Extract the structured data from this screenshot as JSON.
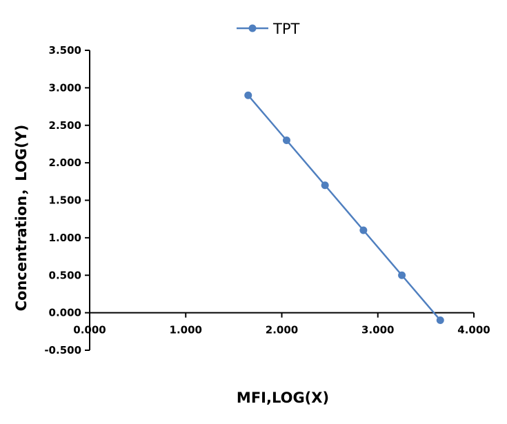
{
  "chart_data": {
    "type": "line",
    "title": "",
    "xlabel": "MFI,LOG(X)",
    "ylabel": "Concentration，LOG(Y)",
    "xlim": [
      0,
      4
    ],
    "ylim": [
      -0.5,
      3.5
    ],
    "x_ticks": [
      0,
      1,
      2,
      3,
      4
    ],
    "x_tick_labels": [
      "0.000",
      "1.000",
      "2.000",
      "3.000",
      "4.000"
    ],
    "y_ticks": [
      -0.5,
      0,
      0.5,
      1,
      1.5,
      2,
      2.5,
      3,
      3.5
    ],
    "y_tick_labels": [
      "-0.500",
      "0.000",
      "0.500",
      "1.000",
      "1.500",
      "2.000",
      "2.500",
      "3.000",
      "3.500"
    ],
    "grid": false,
    "legend_position": "top-center",
    "series": [
      {
        "name": "TPT",
        "color": "#4f7fbf",
        "x": [
          1.65,
          2.05,
          2.45,
          2.85,
          3.25,
          3.65
        ],
        "y": [
          2.9,
          2.3,
          1.7,
          1.1,
          0.5,
          -0.1
        ]
      }
    ]
  }
}
